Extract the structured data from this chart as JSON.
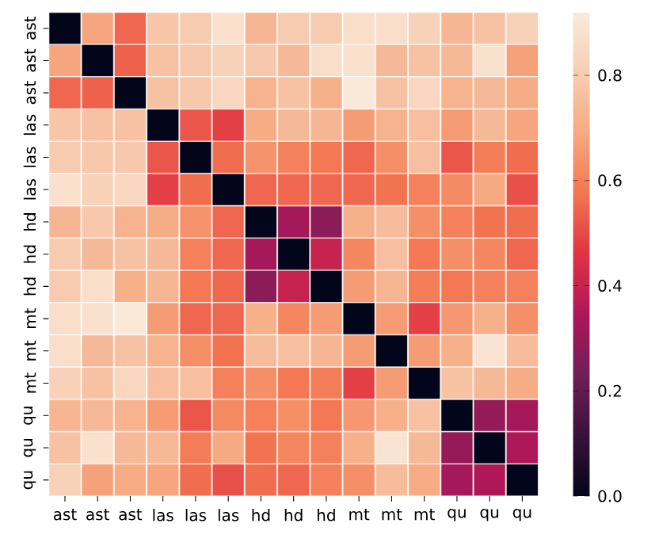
{
  "chart_data": {
    "type": "heatmap",
    "categories": [
      "ast",
      "ast",
      "ast",
      "las",
      "las",
      "las",
      "hd",
      "hd",
      "hd",
      "mt",
      "mt",
      "mt",
      "qu",
      "qu",
      "qu"
    ],
    "y_categories": [
      "ast",
      "ast",
      "ast",
      "las",
      "las",
      "las",
      "hd",
      "hd",
      "hd",
      "mt",
      "mt",
      "mt",
      "qu",
      "qu",
      "qu"
    ],
    "cells": [
      [
        0,
        0.68,
        0.55,
        0.78,
        0.8,
        0.88,
        0.73,
        0.8,
        0.8,
        0.87,
        0.87,
        0.82,
        0.73,
        0.77,
        0.82
      ],
      [
        0.68,
        0,
        0.54,
        0.77,
        0.79,
        0.82,
        0.79,
        0.74,
        0.87,
        0.88,
        0.74,
        0.77,
        0.74,
        0.88,
        0.67
      ],
      [
        0.55,
        0.54,
        0,
        0.77,
        0.79,
        0.84,
        0.72,
        0.77,
        0.71,
        0.91,
        0.77,
        0.84,
        0.72,
        0.74,
        0.7
      ],
      [
        0.78,
        0.77,
        0.77,
        0,
        0.52,
        0.48,
        0.7,
        0.74,
        0.73,
        0.66,
        0.72,
        0.76,
        0.66,
        0.74,
        0.68
      ],
      [
        0.8,
        0.79,
        0.79,
        0.52,
        0,
        0.56,
        0.64,
        0.6,
        0.58,
        0.55,
        0.63,
        0.76,
        0.52,
        0.59,
        0.56
      ],
      [
        0.88,
        0.82,
        0.84,
        0.48,
        0.56,
        0,
        0.55,
        0.55,
        0.55,
        0.55,
        0.57,
        0.6,
        0.62,
        0.69,
        0.51
      ],
      [
        0.73,
        0.79,
        0.72,
        0.7,
        0.64,
        0.55,
        0,
        0.33,
        0.28,
        0.71,
        0.75,
        0.63,
        0.6,
        0.57,
        0.56
      ],
      [
        0.8,
        0.74,
        0.77,
        0.74,
        0.6,
        0.55,
        0.33,
        0,
        0.4,
        0.61,
        0.76,
        0.58,
        0.63,
        0.61,
        0.55
      ],
      [
        0.8,
        0.87,
        0.71,
        0.73,
        0.58,
        0.55,
        0.28,
        0.4,
        0,
        0.66,
        0.73,
        0.59,
        0.58,
        0.6,
        0.6
      ],
      [
        0.87,
        0.88,
        0.91,
        0.66,
        0.55,
        0.55,
        0.71,
        0.61,
        0.66,
        0,
        0.66,
        0.48,
        0.65,
        0.71,
        0.63
      ],
      [
        0.87,
        0.74,
        0.77,
        0.72,
        0.63,
        0.57,
        0.75,
        0.76,
        0.73,
        0.66,
        0,
        0.66,
        0.71,
        0.89,
        0.75
      ],
      [
        0.82,
        0.77,
        0.84,
        0.76,
        0.76,
        0.6,
        0.63,
        0.58,
        0.59,
        0.48,
        0.66,
        0,
        0.77,
        0.74,
        0.7
      ],
      [
        0.73,
        0.74,
        0.72,
        0.66,
        0.52,
        0.62,
        0.6,
        0.63,
        0.58,
        0.65,
        0.71,
        0.77,
        0,
        0.3,
        0.33
      ],
      [
        0.77,
        0.88,
        0.74,
        0.74,
        0.59,
        0.69,
        0.57,
        0.61,
        0.6,
        0.71,
        0.89,
        0.74,
        0.3,
        0,
        0.35
      ],
      [
        0.82,
        0.67,
        0.7,
        0.68,
        0.56,
        0.51,
        0.56,
        0.55,
        0.6,
        0.63,
        0.75,
        0.7,
        0.33,
        0.35,
        0
      ]
    ],
    "clim": [
      0,
      0.92
    ],
    "cticks": [
      {
        "value": 0,
        "label": "0.0"
      },
      {
        "value": 0.2,
        "label": "0.2"
      },
      {
        "value": 0.4,
        "label": "0.4"
      },
      {
        "value": 0.6,
        "label": "0.6"
      },
      {
        "value": 0.8,
        "label": "0.8"
      }
    ]
  }
}
